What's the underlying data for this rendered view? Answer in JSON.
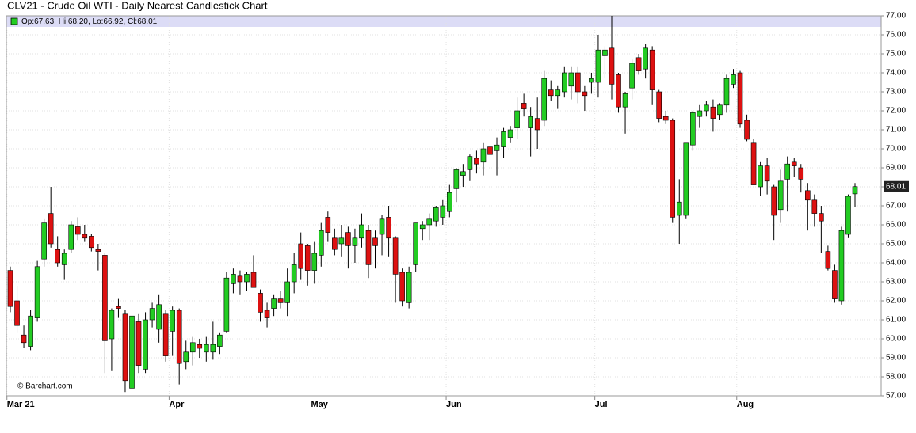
{
  "chart_data": {
    "type": "candlestick",
    "title": "CLV21 - Crude Oil WTI - Daily Nearest Candlestick Chart",
    "info": "Op:67.63, Hi:68.20, Lo:66.92, Cl:68.01",
    "source": "© Barchart.com",
    "up_color": "#22cc22",
    "down_color": "#dd1111",
    "grid": true,
    "last_price": {
      "value": 68.01,
      "label": "68.01"
    },
    "open": [
      63.6,
      62.0,
      60.2,
      59.6,
      61.1,
      64.2,
      66.6,
      64.7,
      63.9,
      64.7,
      65.9,
      65.5,
      65.4,
      64.7,
      64.4,
      60.0,
      61.7,
      61.3,
      57.4,
      60.9,
      58.4,
      61.0,
      60.5,
      61.3,
      60.4,
      61.5,
      58.8,
      59.3,
      59.7,
      59.3,
      59.3,
      59.6,
      60.4,
      62.9,
      63.3,
      63.0,
      63.5,
      62.4,
      61.5,
      61.6,
      62.1,
      61.9,
      63.0,
      65.0,
      64.9,
      63.6,
      64.4,
      66.4,
      65.3,
      65.0,
      65.6,
      64.9,
      65.3,
      65.7,
      65.3,
      65.5,
      66.4,
      65.3,
      63.5,
      61.9,
      63.9,
      65.8,
      66.0,
      66.2,
      66.4,
      66.7,
      67.9,
      68.6,
      68.9,
      69.5,
      69.3,
      70.1,
      69.9,
      70.1,
      70.6,
      71.1,
      72.4,
      71.1,
      71.6,
      71.5,
      73.1,
      72.8,
      73.0,
      73.3,
      74.0,
      73.0,
      73.5,
      73.5,
      74.9,
      75.3,
      73.9,
      72.2,
      73.2,
      74.8,
      74.2,
      75.2,
      73.0,
      71.7,
      71.5,
      66.5,
      66.5,
      70.2,
      71.7,
      72.0,
      72.2,
      71.8,
      72.3,
      73.4,
      74.0,
      71.5,
      70.3,
      68.0,
      69.1,
      68.0,
      66.8,
      68.4,
      69.3,
      69.0,
      67.8,
      67.3,
      66.6,
      64.6,
      63.6,
      62.0,
      65.5,
      67.63
    ],
    "high": [
      63.8,
      62.8,
      60.7,
      61.5,
      64.1,
      66.3,
      68.0,
      65.4,
      64.7,
      66.2,
      66.4,
      66.0,
      65.5,
      65.0,
      64.5,
      61.6,
      62.1,
      61.5,
      61.4,
      61.3,
      61.4,
      61.9,
      62.3,
      61.5,
      61.7,
      61.6,
      59.9,
      60.1,
      60.0,
      60.1,
      60.9,
      60.3,
      63.5,
      63.7,
      63.6,
      63.5,
      64.4,
      62.6,
      61.9,
      62.3,
      62.5,
      63.7,
      64.5,
      65.6,
      65.0,
      65.1,
      66.1,
      66.7,
      65.8,
      66.0,
      65.9,
      65.8,
      66.6,
      66.0,
      65.7,
      66.5,
      67.0,
      65.4,
      63.7,
      63.8,
      66.1,
      66.2,
      66.6,
      67.0,
      67.3,
      68.1,
      69.0,
      69.2,
      69.7,
      69.9,
      70.3,
      70.5,
      70.6,
      71.1,
      71.2,
      72.7,
      72.9,
      72.2,
      72.7,
      74.1,
      73.6,
      73.3,
      74.3,
      74.3,
      74.3,
      73.3,
      74.0,
      76.0,
      75.4,
      77.0,
      74.0,
      73.0,
      74.7,
      75.0,
      75.5,
      75.4,
      73.1,
      72.0,
      71.6,
      68.4,
      70.3,
      72.0,
      72.3,
      72.5,
      72.6,
      72.4,
      73.9,
      74.2,
      74.1,
      71.8,
      70.5,
      69.3,
      69.5,
      68.1,
      68.9,
      69.6,
      69.5,
      69.2,
      68.2,
      67.6,
      67.0,
      64.9,
      63.9,
      65.9,
      67.6,
      68.2
    ],
    "low": [
      61.4,
      60.3,
      59.5,
      59.4,
      60.9,
      63.8,
      64.8,
      63.8,
      63.1,
      64.5,
      65.2,
      65.1,
      64.6,
      63.6,
      58.2,
      58.3,
      61.1,
      57.2,
      57.2,
      58.2,
      58.2,
      60.6,
      59.8,
      58.8,
      59.1,
      57.6,
      58.4,
      58.6,
      59.0,
      58.8,
      58.9,
      59.2,
      60.3,
      62.4,
      62.3,
      62.5,
      62.7,
      60.9,
      60.6,
      61.2,
      61.6,
      61.2,
      62.4,
      63.1,
      62.8,
      62.9,
      63.8,
      65.1,
      64.4,
      64.3,
      63.7,
      64.0,
      64.8,
      63.2,
      63.7,
      64.4,
      64.3,
      61.9,
      61.7,
      61.6,
      63.5,
      65.2,
      65.2,
      65.9,
      66.0,
      66.4,
      67.2,
      68.0,
      68.3,
      68.7,
      68.6,
      69.0,
      68.6,
      69.5,
      70.3,
      70.5,
      71.7,
      69.6,
      70.0,
      71.2,
      72.5,
      72.1,
      72.7,
      72.6,
      72.4,
      72.0,
      72.9,
      72.7,
      73.7,
      72.6,
      71.9,
      70.8,
      72.6,
      73.9,
      73.7,
      72.3,
      71.4,
      71.3,
      66.1,
      65.0,
      66.3,
      69.9,
      71.1,
      71.7,
      70.9,
      71.5,
      71.9,
      73.2,
      71.1,
      70.4,
      68.1,
      67.5,
      67.6,
      65.2,
      66.1,
      66.7,
      68.5,
      67.7,
      65.7,
      65.9,
      64.5,
      63.6,
      61.9,
      61.8,
      65.3,
      66.92
    ],
    "close": [
      61.7,
      60.7,
      59.8,
      61.2,
      63.8,
      66.1,
      65.0,
      64.0,
      64.5,
      66.0,
      65.5,
      65.3,
      64.8,
      64.6,
      59.9,
      61.5,
      61.6,
      57.8,
      61.2,
      58.6,
      61.0,
      61.6,
      61.8,
      59.1,
      61.5,
      58.7,
      59.3,
      59.8,
      59.5,
      59.7,
      59.7,
      60.2,
      63.2,
      63.4,
      63.0,
      63.4,
      62.7,
      61.4,
      61.1,
      62.1,
      61.9,
      63.0,
      63.9,
      63.7,
      63.6,
      64.5,
      65.7,
      65.6,
      64.7,
      65.3,
      64.9,
      65.3,
      66.0,
      63.9,
      64.9,
      66.3,
      65.3,
      63.4,
      62.0,
      63.5,
      66.1,
      66.0,
      66.3,
      66.9,
      67.0,
      67.7,
      68.9,
      68.8,
      69.6,
      69.2,
      70.0,
      69.7,
      70.2,
      70.9,
      71.0,
      72.0,
      72.1,
      71.7,
      71.0,
      73.7,
      72.8,
      73.1,
      74.0,
      74.0,
      73.0,
      72.8,
      73.7,
      75.2,
      75.2,
      73.4,
      72.2,
      72.9,
      74.5,
      74.1,
      75.3,
      73.1,
      71.6,
      71.5,
      66.4,
      67.2,
      70.3,
      71.9,
      72.0,
      72.3,
      71.6,
      72.3,
      73.7,
      73.9,
      71.3,
      70.5,
      68.1,
      69.1,
      68.3,
      66.5,
      68.3,
      69.2,
      69.1,
      68.4,
      67.3,
      66.6,
      66.2,
      63.7,
      62.1,
      65.7,
      67.5,
      68.01
    ],
    "ylim": [
      57,
      77
    ],
    "yticks": [
      {
        "value": 57,
        "label": "57.00"
      },
      {
        "value": 58,
        "label": "58.00"
      },
      {
        "value": 59,
        "label": "59.00"
      },
      {
        "value": 60,
        "label": "60.00"
      },
      {
        "value": 61,
        "label": "61.00"
      },
      {
        "value": 62,
        "label": "62.00"
      },
      {
        "value": 63,
        "label": "63.00"
      },
      {
        "value": 64,
        "label": "64.00"
      },
      {
        "value": 65,
        "label": "65.00"
      },
      {
        "value": 66,
        "label": "66.00"
      },
      {
        "value": 67,
        "label": "67.00"
      },
      {
        "value": 68,
        "label": "68.00"
      },
      {
        "value": 69,
        "label": "69.00"
      },
      {
        "value": 70,
        "label": "70.00"
      },
      {
        "value": 71,
        "label": "71.00"
      },
      {
        "value": 72,
        "label": "72.00"
      },
      {
        "value": 73,
        "label": "73.00"
      },
      {
        "value": 74,
        "label": "74.00"
      },
      {
        "value": 75,
        "label": "75.00"
      },
      {
        "value": 76,
        "label": "76.00"
      },
      {
        "value": 77,
        "label": "77.00"
      }
    ],
    "xticks": [
      {
        "value": 0,
        "label": "Mar 21"
      },
      {
        "value": 24,
        "label": "Apr"
      },
      {
        "value": 45,
        "label": "May"
      },
      {
        "value": 65,
        "label": "Jun"
      },
      {
        "value": 87,
        "label": "Jul"
      },
      {
        "value": 108,
        "label": "Aug"
      }
    ]
  }
}
